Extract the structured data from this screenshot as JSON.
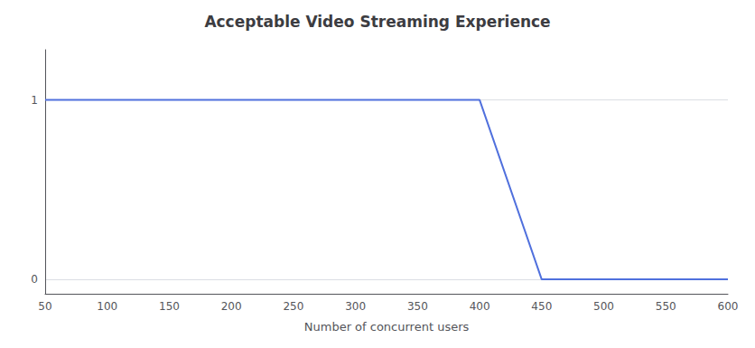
{
  "chart_data": {
    "type": "line",
    "title": "Acceptable Video Streaming Experience",
    "xlabel": "Number of concurrent users",
    "x": [
      50,
      100,
      150,
      200,
      250,
      300,
      350,
      400,
      450,
      500,
      550,
      600
    ],
    "values": [
      1,
      1,
      1,
      1,
      1,
      1,
      1,
      1,
      0,
      0,
      0,
      0
    ],
    "xlim": [
      50,
      600
    ],
    "ylim": [
      -0.08,
      1.28
    ],
    "xticks": [
      50,
      100,
      150,
      200,
      250,
      300,
      350,
      400,
      450,
      500,
      550,
      600
    ],
    "yticks": [
      0,
      1
    ],
    "grid": true
  }
}
